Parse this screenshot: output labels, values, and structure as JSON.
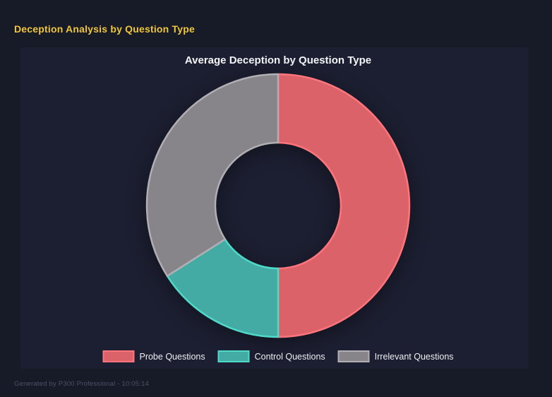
{
  "page": {
    "title": "Deception Analysis by Question Type",
    "footer": "Generated by P300 Professional - 10:05:14"
  },
  "colors": {
    "page_bg": "#171a27",
    "panel_bg": "#1c1f31",
    "page_title": "#f0c63c",
    "chart_title_text": "#f4f5f7",
    "legend_text": "#edeef2",
    "footer_text": "#4d5265"
  },
  "chart_data": {
    "type": "pie",
    "variant": "doughnut",
    "title": "Average Deception by Question Type",
    "labels": [
      "Probe Questions",
      "Control Questions",
      "Irrelevant Questions"
    ],
    "values": [
      50,
      16,
      34
    ],
    "value_unit": "percent_of_circle",
    "segment_colors": [
      "#dc626a",
      "#43aba4",
      "#87858a"
    ],
    "segment_border_colors": [
      "#ff757b",
      "#4fd9c9",
      "#b1afb3"
    ],
    "start_angle_deg": 0,
    "direction": "clockwise",
    "cutout_ratio": 0.48,
    "outer_radius_px": 186,
    "legend_position": "bottom",
    "grid": false
  }
}
